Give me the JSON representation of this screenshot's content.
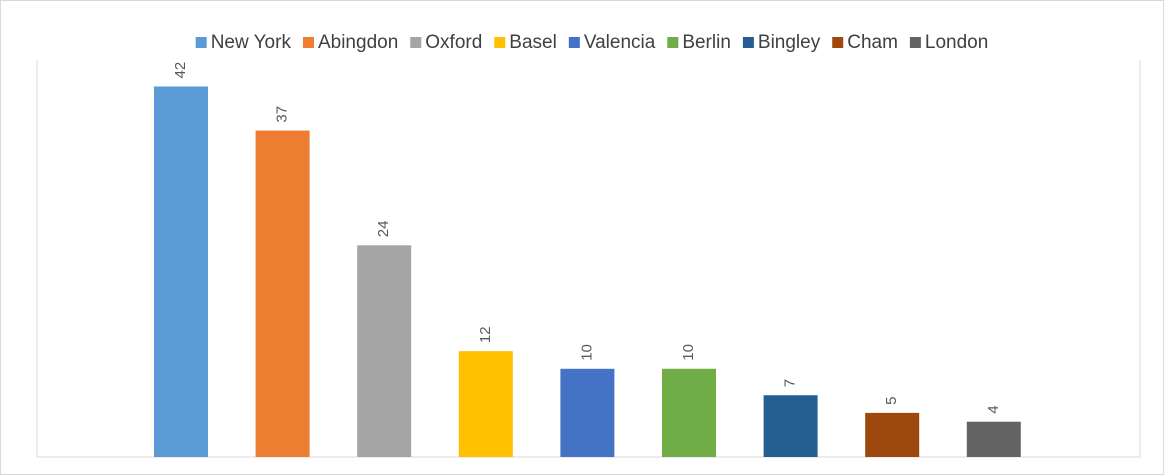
{
  "chart_data": {
    "type": "bar",
    "categories": [
      null
    ],
    "series": [
      {
        "name": "New York",
        "color": "#5b9bd5",
        "values": [
          42
        ]
      },
      {
        "name": "Abingdon",
        "color": "#ed7d31",
        "values": [
          37
        ]
      },
      {
        "name": "Oxford",
        "color": "#a5a5a5",
        "values": [
          24
        ]
      },
      {
        "name": "Basel",
        "color": "#ffc000",
        "values": [
          12
        ]
      },
      {
        "name": "Valencia",
        "color": "#4472c4",
        "values": [
          10
        ]
      },
      {
        "name": "Berlin",
        "color": "#70ad47",
        "values": [
          10
        ]
      },
      {
        "name": "Bingley",
        "color": "#255e91",
        "values": [
          7
        ]
      },
      {
        "name": "Cham",
        "color": "#9e480e",
        "values": [
          5
        ]
      },
      {
        "name": "London",
        "color": "#636363",
        "values": [
          4
        ]
      }
    ],
    "ylim": [
      0,
      45
    ],
    "legend": "top"
  }
}
